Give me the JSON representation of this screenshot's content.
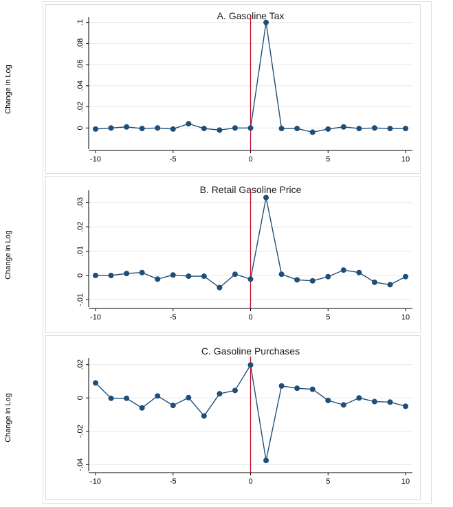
{
  "chart_data": [
    {
      "type": "line",
      "title": "A. Gasoline Tax",
      "ylabel": "Change in Log",
      "xlabel": "",
      "x": [
        -10,
        -9,
        -8,
        -7,
        -6,
        -5,
        -4,
        -3,
        -2,
        -1,
        0,
        1,
        2,
        3,
        4,
        5,
        6,
        7,
        8,
        9,
        10
      ],
      "series": [
        {
          "values": [
            -0.001,
            0.0,
            0.001,
            -0.0005,
            0.0,
            -0.001,
            0.004,
            -0.0005,
            -0.002,
            0.0,
            0.0,
            0.1,
            -0.0005,
            -0.0005,
            -0.004,
            -0.001,
            0.001,
            -0.0005,
            0.0,
            -0.0005,
            -0.0005
          ]
        }
      ],
      "xlim": [
        -10,
        10
      ],
      "ylim": [
        -0.02,
        0.105
      ],
      "xticks": [
        -10,
        -5,
        0,
        5,
        10
      ],
      "xtick_labels": [
        "-10",
        "-5",
        "0",
        "5",
        "10"
      ],
      "yticks": [
        0,
        0.02,
        0.04,
        0.06,
        0.08,
        0.1
      ],
      "ytick_labels": [
        "0",
        ".02",
        ".04",
        ".06",
        ".08",
        ".1"
      ],
      "vline_x": 0,
      "grid": true
    },
    {
      "type": "line",
      "title": "B. Retail Gasoline Price",
      "ylabel": "Change in Log",
      "xlabel": "",
      "x": [
        -10,
        -9,
        -8,
        -7,
        -6,
        -5,
        -4,
        -3,
        -2,
        -1,
        0,
        1,
        2,
        3,
        4,
        5,
        6,
        7,
        8,
        9,
        10
      ],
      "series": [
        {
          "values": [
            0.0,
            0.0,
            0.0008,
            0.0012,
            -0.0015,
            0.0002,
            -0.0003,
            -0.0003,
            -0.005,
            0.0005,
            -0.0015,
            0.032,
            0.0005,
            -0.0018,
            -0.0022,
            -0.0005,
            0.0022,
            0.0012,
            -0.0028,
            -0.0038,
            -0.0005
          ]
        }
      ],
      "xlim": [
        -10,
        10
      ],
      "ylim": [
        -0.013,
        0.035
      ],
      "xticks": [
        -10,
        -5,
        0,
        5,
        10
      ],
      "xtick_labels": [
        "-10",
        "-5",
        "0",
        "5",
        "10"
      ],
      "yticks": [
        -0.01,
        0,
        0.01,
        0.02,
        0.03
      ],
      "ytick_labels": [
        "-.01",
        "0",
        ".01",
        ".02",
        ".03"
      ],
      "vline_x": 0,
      "grid": true
    },
    {
      "type": "line",
      "title": "C. Gasoline Purchases",
      "ylabel": "Change in Log",
      "xlabel": "",
      "x": [
        -10,
        -9,
        -8,
        -7,
        -6,
        -5,
        -4,
        -3,
        -2,
        -1,
        0,
        1,
        2,
        3,
        4,
        5,
        6,
        7,
        8,
        9,
        10
      ],
      "series": [
        {
          "values": [
            0.009,
            -0.0002,
            -0.0002,
            -0.006,
            0.0012,
            -0.0045,
            0.0002,
            -0.0108,
            0.0025,
            0.0045,
            0.0198,
            -0.0375,
            0.0072,
            0.0058,
            0.0052,
            -0.0015,
            -0.0042,
            0.0,
            -0.0022,
            -0.0025,
            -0.005
          ]
        }
      ],
      "xlim": [
        -10,
        10
      ],
      "ylim": [
        -0.044,
        0.024
      ],
      "xticks": [
        -10,
        -5,
        0,
        5,
        10
      ],
      "xtick_labels": [
        "-10",
        "-5",
        "0",
        "5",
        "10"
      ],
      "yticks": [
        -0.04,
        -0.02,
        0,
        0.02
      ],
      "ytick_labels": [
        "-.04",
        "-.02",
        "0",
        ".02"
      ],
      "vline_x": 0,
      "grid": true
    }
  ],
  "colors": {
    "line": "#1f4e79",
    "marker": "#1f4e79",
    "vline": "#c8102e",
    "grid": "#e3e8ee",
    "border": "#d6dde4"
  }
}
